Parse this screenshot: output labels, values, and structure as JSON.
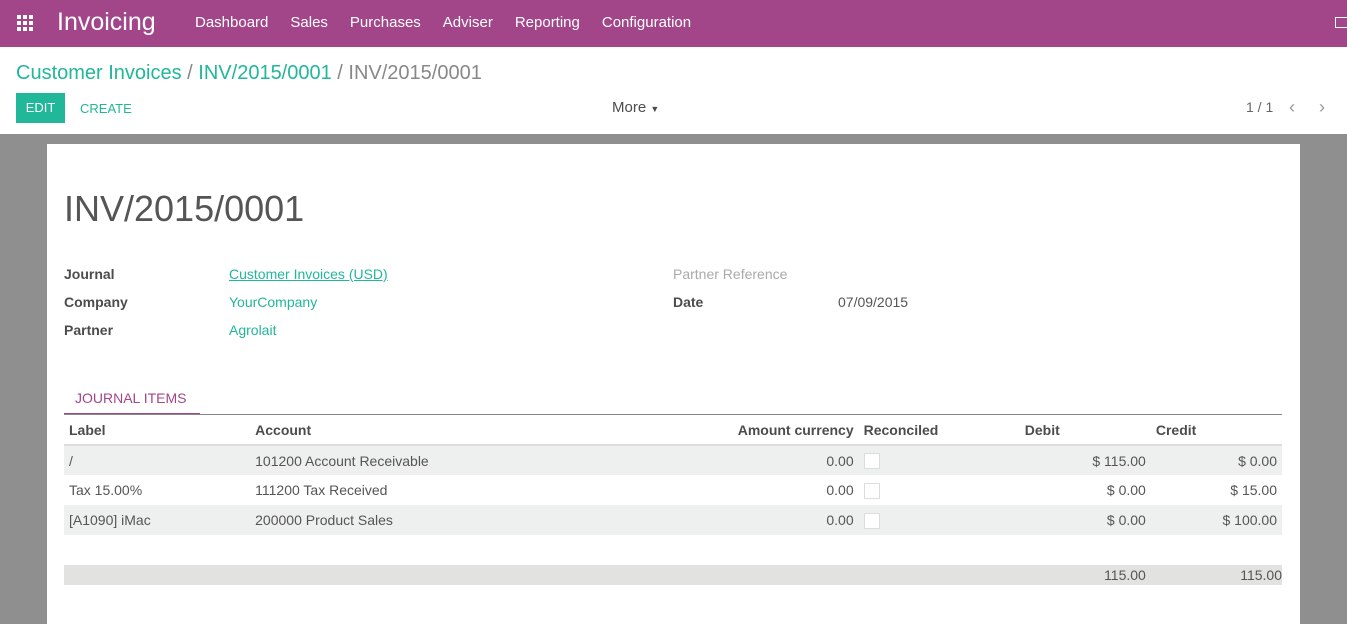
{
  "nav": {
    "brand": "Invoicing",
    "menu": [
      "Dashboard",
      "Sales",
      "Purchases",
      "Adviser",
      "Reporting",
      "Configuration"
    ],
    "icons": [
      "apps-grid-icon",
      "mail-icon"
    ],
    "color": "#a24689"
  },
  "breadcrumb": [
    "Customer Invoices",
    "INV/2015/0001",
    "INV/2015/0001"
  ],
  "buttons": {
    "edit": "EDIT",
    "create": "CREATE",
    "more": "More"
  },
  "pager": {
    "value": "1 / 1"
  },
  "form": {
    "title": "INV/2015/0001",
    "journal_label": "Journal",
    "journal": "Customer Invoices (USD)",
    "company_label": "Company",
    "company": "YourCompany",
    "partner_label": "Partner",
    "partner": "Agrolait",
    "partner_ref_label": "Partner Reference",
    "date_label": "Date",
    "date": "07/09/2015"
  },
  "tab": "JOURNAL ITEMS",
  "table": {
    "headers": [
      "Label",
      "Account",
      "Amount currency",
      "Reconciled",
      "Debit",
      "Credit"
    ],
    "rows": [
      {
        "label": "/",
        "account": "101200 Account Receivable",
        "amount": "0.00",
        "reconciled": false,
        "debit": "$ 115.00",
        "credit": "$ 0.00"
      },
      {
        "label": "Tax 15.00%",
        "account": "111200 Tax Received",
        "amount": "0.00",
        "reconciled": false,
        "debit": "$ 0.00",
        "credit": "$ 15.00"
      },
      {
        "label": "[A1090] iMac",
        "account": "200000 Product Sales",
        "amount": "0.00",
        "reconciled": false,
        "debit": "$ 0.00",
        "credit": "$ 100.00"
      }
    ],
    "totals": {
      "debit": "115.00",
      "credit": "115.00"
    }
  },
  "colors": {
    "accent": "#21b799"
  }
}
